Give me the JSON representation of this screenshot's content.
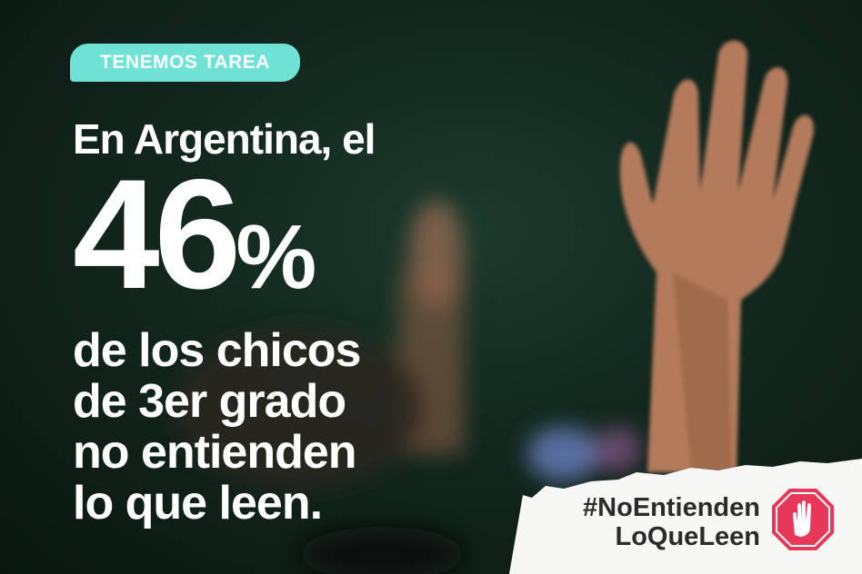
{
  "badge": {
    "label": "TENEMOS TAREA",
    "color": "#70e2d5"
  },
  "headline": {
    "intro": "En Argentina, el",
    "figure": "46",
    "percent_sign": "%",
    "lines": [
      "de los chicos",
      "de 3er grado",
      "no entienden",
      "lo que leen."
    ]
  },
  "hashtag": {
    "line1": "#NoEntienden",
    "line2": "LoQueLeen"
  },
  "stop_icon": {
    "name": "stop-hand-icon",
    "color": "#e8385a"
  }
}
